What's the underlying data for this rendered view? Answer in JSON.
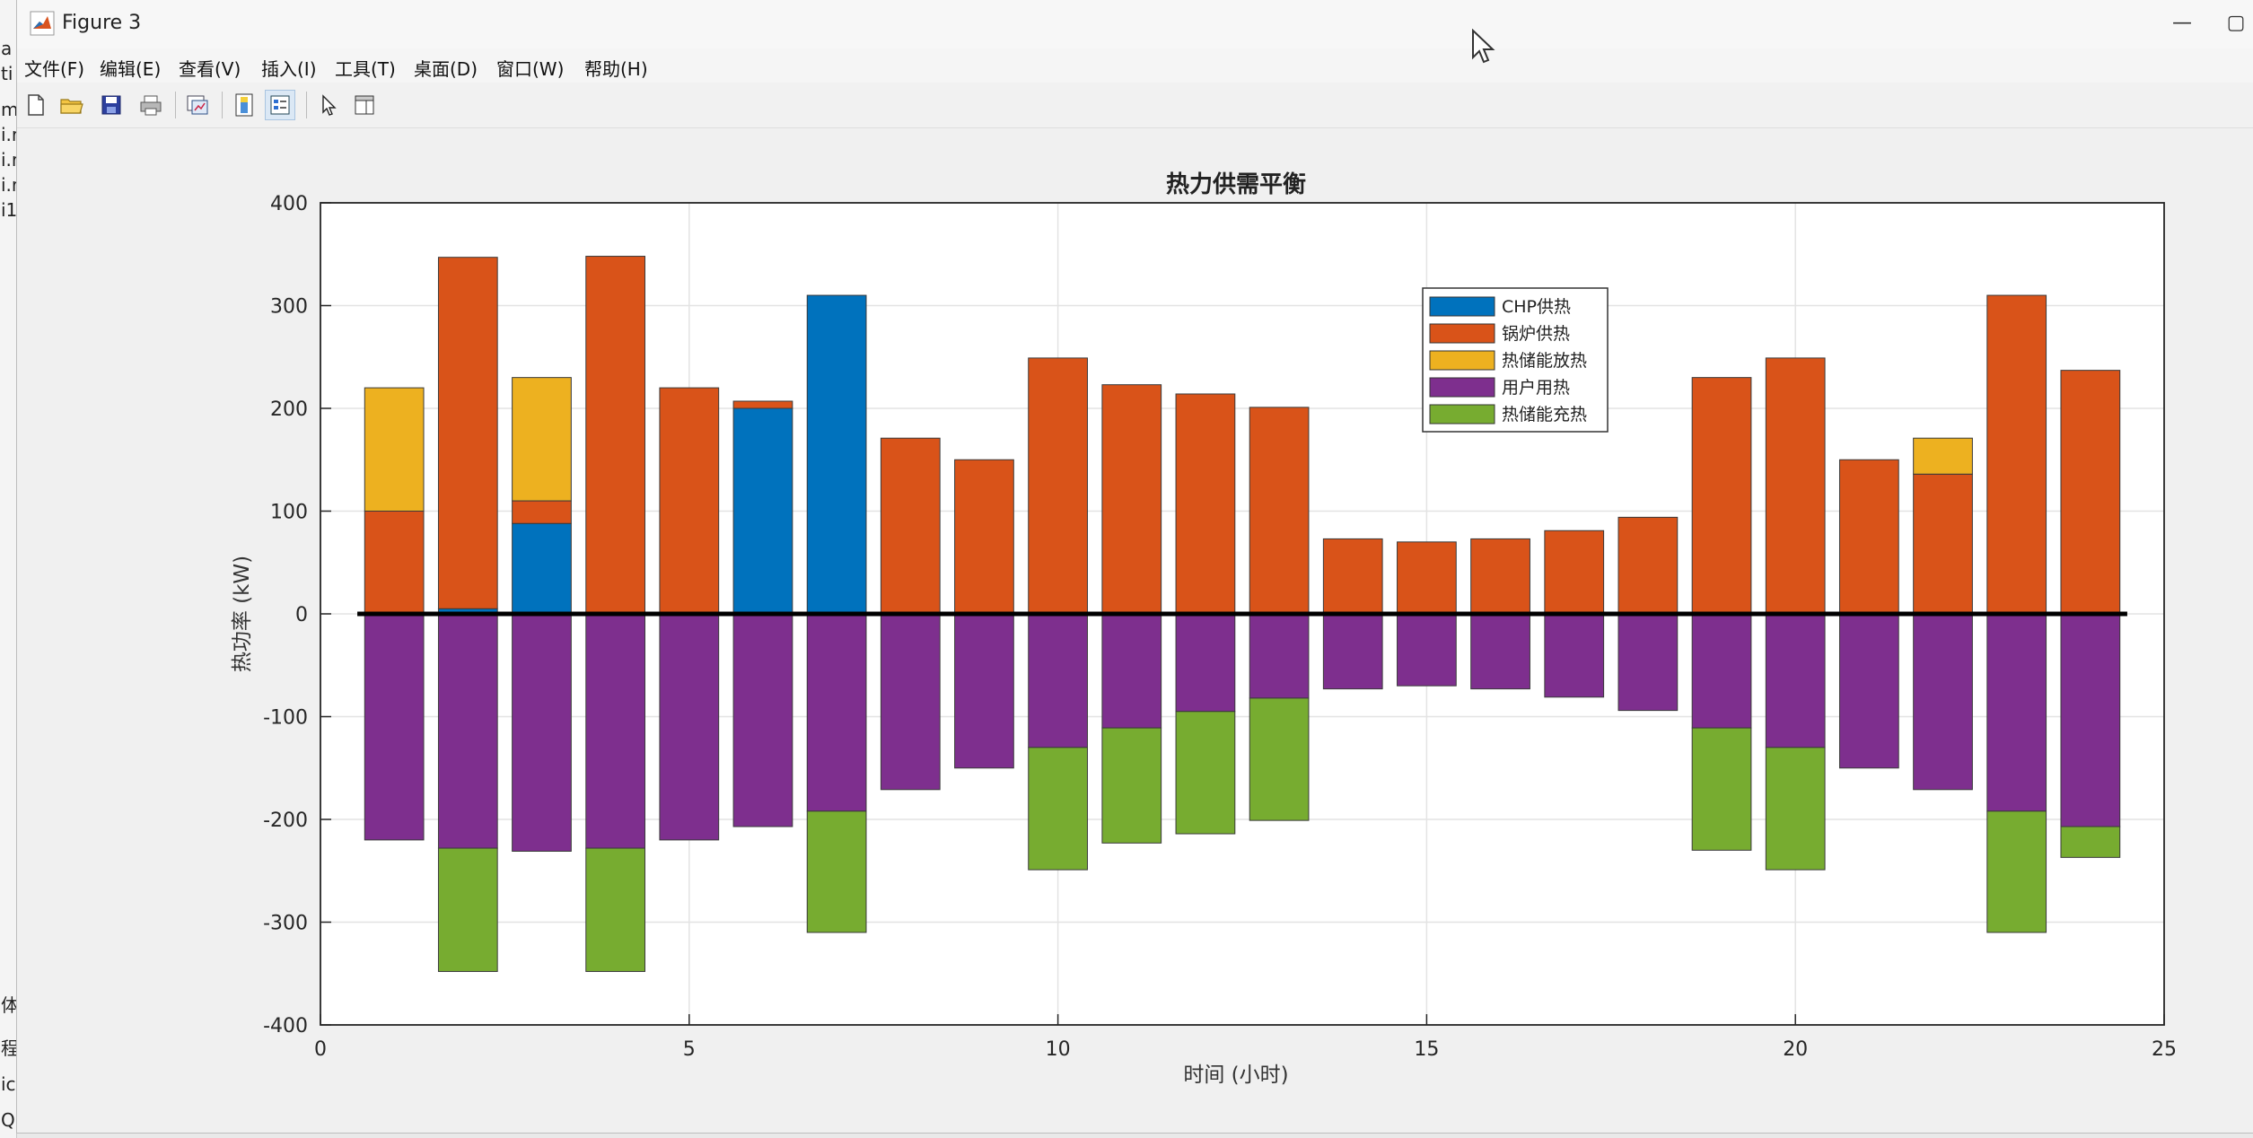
{
  "window": {
    "title": "Figure 3",
    "left_strip_chars": [
      "a",
      "ti",
      "m",
      "i.r",
      "i.r",
      "i.r",
      "i1",
      "体",
      "程",
      "ic",
      "Q"
    ]
  },
  "menu": [
    {
      "label": "文件(F)"
    },
    {
      "label": "编辑(E)"
    },
    {
      "label": "查看(V)"
    },
    {
      "label": "插入(I)"
    },
    {
      "label": "工具(T)"
    },
    {
      "label": "桌面(D)"
    },
    {
      "label": "窗口(W)"
    },
    {
      "label": "帮助(H)"
    }
  ],
  "toolbar": [
    {
      "name": "new-figure-icon"
    },
    {
      "name": "open-file-icon"
    },
    {
      "name": "save-icon"
    },
    {
      "name": "print-icon"
    },
    {
      "name": "link-plot-icon"
    },
    {
      "name": "insert-colorbar-icon"
    },
    {
      "name": "insert-legend-icon"
    },
    {
      "name": "edit-plot-pointer-icon"
    },
    {
      "name": "property-inspector-icon"
    }
  ],
  "colors": {
    "chp": "#0072BD",
    "boiler": "#D95319",
    "storage_discharge": "#EDB120",
    "user_load": "#7E2F8E",
    "storage_charge": "#77AC30"
  },
  "chart_data": {
    "type": "bar",
    "stacked": true,
    "title": "热力供需平衡",
    "xlabel": "时间 (小时)",
    "ylabel": "热功率 (kW)",
    "xlim": [
      0,
      25
    ],
    "ylim": [
      -400,
      400
    ],
    "xticks": [
      "0",
      "5",
      "10",
      "15",
      "20",
      "25"
    ],
    "yticks": [
      "400",
      "300",
      "200",
      "100",
      "0",
      "-100",
      "-200",
      "-300",
      "-400"
    ],
    "grid": true,
    "legend_position": "top-right-inside",
    "categories": [
      1,
      2,
      3,
      4,
      5,
      6,
      7,
      8,
      9,
      10,
      11,
      12,
      13,
      14,
      15,
      16,
      17,
      18,
      19,
      20,
      21,
      22,
      23,
      24
    ],
    "series": [
      {
        "name": "CHP供热",
        "values": [
          0,
          5,
          88,
          0,
          0,
          200,
          310,
          0,
          0,
          0,
          0,
          0,
          0,
          0,
          0,
          0,
          0,
          0,
          0,
          0,
          0,
          0,
          0,
          0
        ]
      },
      {
        "name": "锅炉供热",
        "values": [
          100,
          342,
          22,
          348,
          220,
          7,
          0,
          171,
          150,
          249,
          223,
          214,
          201,
          73,
          70,
          73,
          81,
          94,
          230,
          249,
          150,
          136,
          310,
          237
        ]
      },
      {
        "name": "热储能放热",
        "values": [
          120,
          0,
          120,
          0,
          0,
          0,
          0,
          0,
          0,
          0,
          0,
          0,
          0,
          0,
          0,
          0,
          0,
          0,
          0,
          0,
          0,
          35,
          0,
          0
        ]
      },
      {
        "name": "用户用热",
        "values": [
          -220,
          -228,
          -231,
          -228,
          -220,
          -207,
          -192,
          -171,
          -150,
          -130,
          -111,
          -95,
          -82,
          -73,
          -70,
          -73,
          -81,
          -94,
          -111,
          -130,
          -150,
          -171,
          -192,
          -207
        ]
      },
      {
        "name": "热储能充热",
        "values": [
          0,
          -120,
          0,
          -120,
          0,
          0,
          -118,
          0,
          0,
          -119,
          -112,
          -119,
          -119,
          0,
          0,
          0,
          0,
          0,
          -119,
          -119,
          0,
          0,
          -118,
          -30
        ]
      }
    ]
  }
}
